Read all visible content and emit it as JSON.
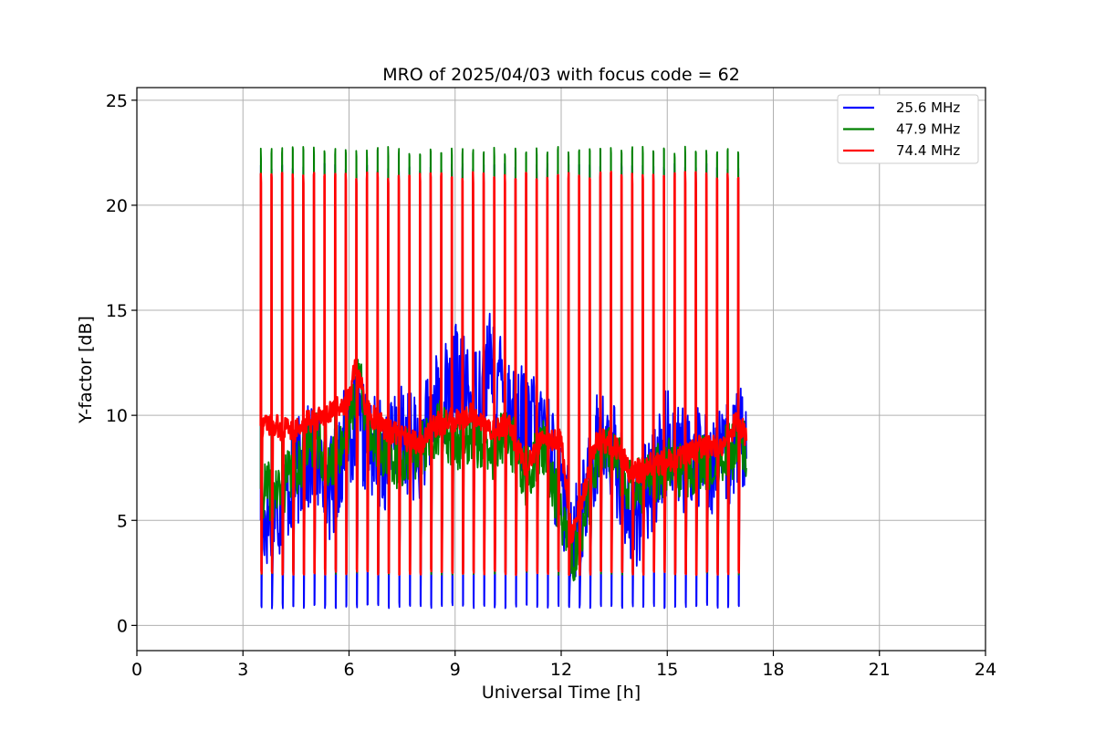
{
  "chart_data": {
    "type": "line",
    "title": "MRO of 2025/04/03 with focus code = 62",
    "xlabel": "Universal Time [h]",
    "ylabel": "Y-factor [dB]",
    "xlim": [
      0,
      24
    ],
    "ylim": [
      -1.2,
      25.6
    ],
    "xticks": [
      0,
      3,
      6,
      9,
      12,
      15,
      18,
      21,
      24
    ],
    "yticks": [
      0,
      5,
      10,
      15,
      20,
      25
    ],
    "grid": true,
    "legend_position": "top-right",
    "cycle": {
      "start_hour": 3.5,
      "end_hour": 17.25,
      "period_hours": 0.3
    },
    "series": [
      {
        "name": "25.6 MHz",
        "color": "#0000ff",
        "spike_high": 22.0,
        "spike_low": 0.8,
        "baseline": [
          [
            3.5,
            5.0
          ],
          [
            4.0,
            5.6
          ],
          [
            4.5,
            7.2
          ],
          [
            5.0,
            8.2
          ],
          [
            5.5,
            6.5
          ],
          [
            6.0,
            9.5
          ],
          [
            6.5,
            8.8
          ],
          [
            7.0,
            8.0
          ],
          [
            7.5,
            9.0
          ],
          [
            8.0,
            8.3
          ],
          [
            8.5,
            10.5
          ],
          [
            9.0,
            12.0
          ],
          [
            9.5,
            10.5
          ],
          [
            10.0,
            12.5
          ],
          [
            10.5,
            10.8
          ],
          [
            11.0,
            9.5
          ],
          [
            11.5,
            9.8
          ],
          [
            12.0,
            6.0
          ],
          [
            12.3,
            4.6
          ],
          [
            12.6,
            5.2
          ],
          [
            13.0,
            8.6
          ],
          [
            13.5,
            8.2
          ],
          [
            14.0,
            5.0
          ],
          [
            14.5,
            6.5
          ],
          [
            15.0,
            8.8
          ],
          [
            15.5,
            7.8
          ],
          [
            16.0,
            8.2
          ],
          [
            16.5,
            7.6
          ],
          [
            17.0,
            8.8
          ],
          [
            17.25,
            8.5
          ]
        ]
      },
      {
        "name": "47.9 MHz",
        "color": "#008000",
        "spike_high": 22.8,
        "spike_low": 2.4,
        "baseline": [
          [
            3.5,
            6.5
          ],
          [
            4.0,
            6.3
          ],
          [
            4.5,
            7.5
          ],
          [
            5.0,
            9.0
          ],
          [
            5.5,
            7.5
          ],
          [
            6.0,
            9.5
          ],
          [
            6.3,
            12.2
          ],
          [
            6.5,
            9.6
          ],
          [
            7.0,
            8.0
          ],
          [
            7.5,
            7.8
          ],
          [
            8.0,
            8.4
          ],
          [
            8.5,
            9.5
          ],
          [
            9.0,
            8.6
          ],
          [
            9.5,
            9.2
          ],
          [
            10.0,
            8.0
          ],
          [
            10.5,
            9.2
          ],
          [
            11.0,
            7.0
          ],
          [
            11.5,
            8.6
          ],
          [
            12.0,
            5.0
          ],
          [
            12.3,
            3.2
          ],
          [
            12.6,
            4.2
          ],
          [
            13.0,
            7.6
          ],
          [
            13.5,
            8.2
          ],
          [
            14.0,
            6.4
          ],
          [
            14.5,
            7.0
          ],
          [
            15.0,
            7.6
          ],
          [
            15.5,
            7.2
          ],
          [
            16.0,
            7.8
          ],
          [
            16.5,
            8.0
          ],
          [
            17.0,
            8.5
          ],
          [
            17.25,
            8.3
          ]
        ]
      },
      {
        "name": "74.4 MHz",
        "color": "#ff0000",
        "spike_high": 21.6,
        "spike_low": 2.4,
        "baseline": [
          [
            3.5,
            9.5
          ],
          [
            4.0,
            9.4
          ],
          [
            4.5,
            9.3
          ],
          [
            5.0,
            9.8
          ],
          [
            5.5,
            10.2
          ],
          [
            6.0,
            10.8
          ],
          [
            6.2,
            12.4
          ],
          [
            6.5,
            10.2
          ],
          [
            7.0,
            9.4
          ],
          [
            7.5,
            9.0
          ],
          [
            8.0,
            8.6
          ],
          [
            8.5,
            9.6
          ],
          [
            9.0,
            9.8
          ],
          [
            9.5,
            10.0
          ],
          [
            10.0,
            9.2
          ],
          [
            10.5,
            9.6
          ],
          [
            11.0,
            7.5
          ],
          [
            11.5,
            9.0
          ],
          [
            12.0,
            8.8
          ],
          [
            12.3,
            4.4
          ],
          [
            12.6,
            6.0
          ],
          [
            13.0,
            9.0
          ],
          [
            13.5,
            8.6
          ],
          [
            14.0,
            7.2
          ],
          [
            14.5,
            7.6
          ],
          [
            15.0,
            7.8
          ],
          [
            15.5,
            8.0
          ],
          [
            16.0,
            8.6
          ],
          [
            16.5,
            8.4
          ],
          [
            17.0,
            9.8
          ],
          [
            17.25,
            9.0
          ]
        ]
      }
    ]
  }
}
